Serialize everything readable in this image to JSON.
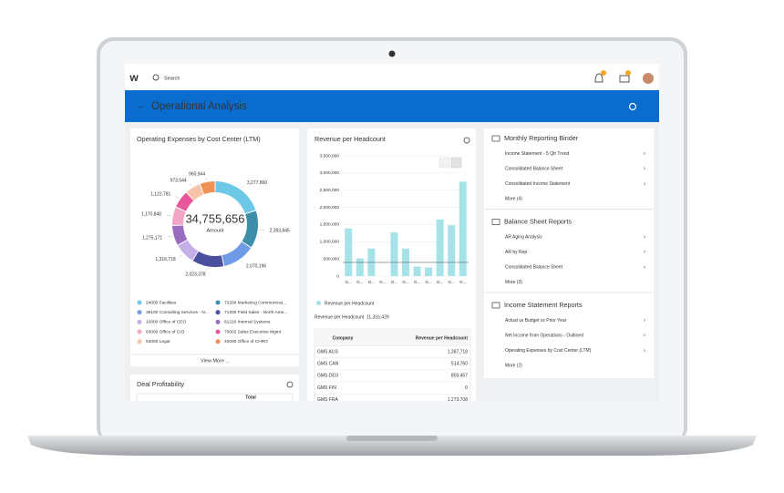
{
  "nav": {
    "search_placeholder": "Search"
  },
  "header": {
    "title": "Operational Analysis"
  },
  "expenses_card": {
    "title": "Operating Expenses by Cost Center (LTM)",
    "total": "34,755,656",
    "total_label": "Amount",
    "segments": [
      {
        "name": "24000 Facilities",
        "color": "#6dc8e8",
        "value": 3277860,
        "label": "3,277,860"
      },
      {
        "name": "72200 Marketing Communicat...",
        "color": "#3d8ea8",
        "value": 2393845,
        "label": "2,393,845"
      },
      {
        "name": "36100 Consulting Services - N...",
        "color": "#6f9be6",
        "value": 2070196,
        "label": "2,070,196"
      },
      {
        "name": "71200 Field Sales - North Ame...",
        "color": "#4a4f9e",
        "value": 2023378,
        "label": "2,023,378"
      },
      {
        "name": "10000 Office of CEO",
        "color": "#c6aee6",
        "value": 1316718,
        "label": "1,316,718"
      },
      {
        "name": "61210 Internal Systems",
        "color": "#9a6cc0",
        "value": 1275171,
        "label": "1,275,171"
      },
      {
        "name": "63000 Office of CIO",
        "color": "#f2a6c6",
        "value": 1170840,
        "label": "1,170,840"
      },
      {
        "name": "70002 Sales Executive Mgmt",
        "color": "#e7579a",
        "value": 1122781,
        "label": "1,122,781"
      },
      {
        "name": "53000 Legal",
        "color": "#f8c4a8",
        "value": 973544,
        "label": "973,544"
      },
      {
        "name": "40000 Office of CHRO",
        "color": "#f09055",
        "value": 960944,
        "label": "960,944"
      }
    ],
    "view_more": "View More ..."
  },
  "deal_card": {
    "title": "Deal Profitability",
    "column": "Total"
  },
  "revenue_card": {
    "title": "Revenue per Headcount",
    "series_name": "Revenue per Headcount",
    "color": "#a6e3e9",
    "categories": [
      "G...",
      "G...",
      "G...",
      "G...",
      "G...",
      "G...",
      "G...",
      "G...",
      "G...",
      "G...",
      "G..."
    ],
    "values": [
      1387718,
      514760,
      803457,
      0,
      1273708,
      800000,
      280000,
      250000,
      1650000,
      1480000,
      2750000
    ],
    "reference_line": 400000,
    "ylim": [
      0,
      3500000
    ],
    "yticks": [
      0,
      {
        "value": 500000,
        "label": "500,000"
      },
      {
        "value": 1000000,
        "label": "1,000,000"
      },
      {
        "value": 1500000,
        "label": "1,500,000"
      },
      {
        "value": 2000000,
        "label": "2,000,000"
      },
      {
        "value": 2500000,
        "label": "2,500,000"
      },
      {
        "value": 3000000,
        "label": "3,000,000"
      },
      {
        "value": 3500000,
        "label": "3,500,000"
      }
    ],
    "summary_label": "Revenue per Headcount",
    "summary_value": "11,316,429",
    "table": {
      "columns": [
        "Company",
        "Revenue per Headcount"
      ],
      "rows": [
        [
          "GMS AUS",
          "1,387,718"
        ],
        [
          "GMS CAN",
          "514,760"
        ],
        [
          "GMS DEU",
          "803,457"
        ],
        [
          "GMS FIN",
          "0"
        ],
        [
          "GMS FRA",
          "1,273,708"
        ]
      ]
    }
  },
  "reports": [
    {
      "title": "Monthly Reporting Binder",
      "items": [
        "Income Statement - 5 Qtr Trend",
        "Consolidated Balance Sheet",
        "Consolidated Income Statement",
        "More (4)"
      ]
    },
    {
      "title": "Balance Sheet Reports",
      "items": [
        "AR Aging Analysis",
        "AR by Rep",
        "Consolidated Balance Sheet",
        "More (3)"
      ]
    },
    {
      "title": "Income Statement Reports",
      "items": [
        "Actual vs Budget vs Prior Year",
        "Net Income from Operations - Outlined",
        "Operating Expenses by Cost Center (LTM)",
        "More (2)"
      ]
    }
  ]
}
